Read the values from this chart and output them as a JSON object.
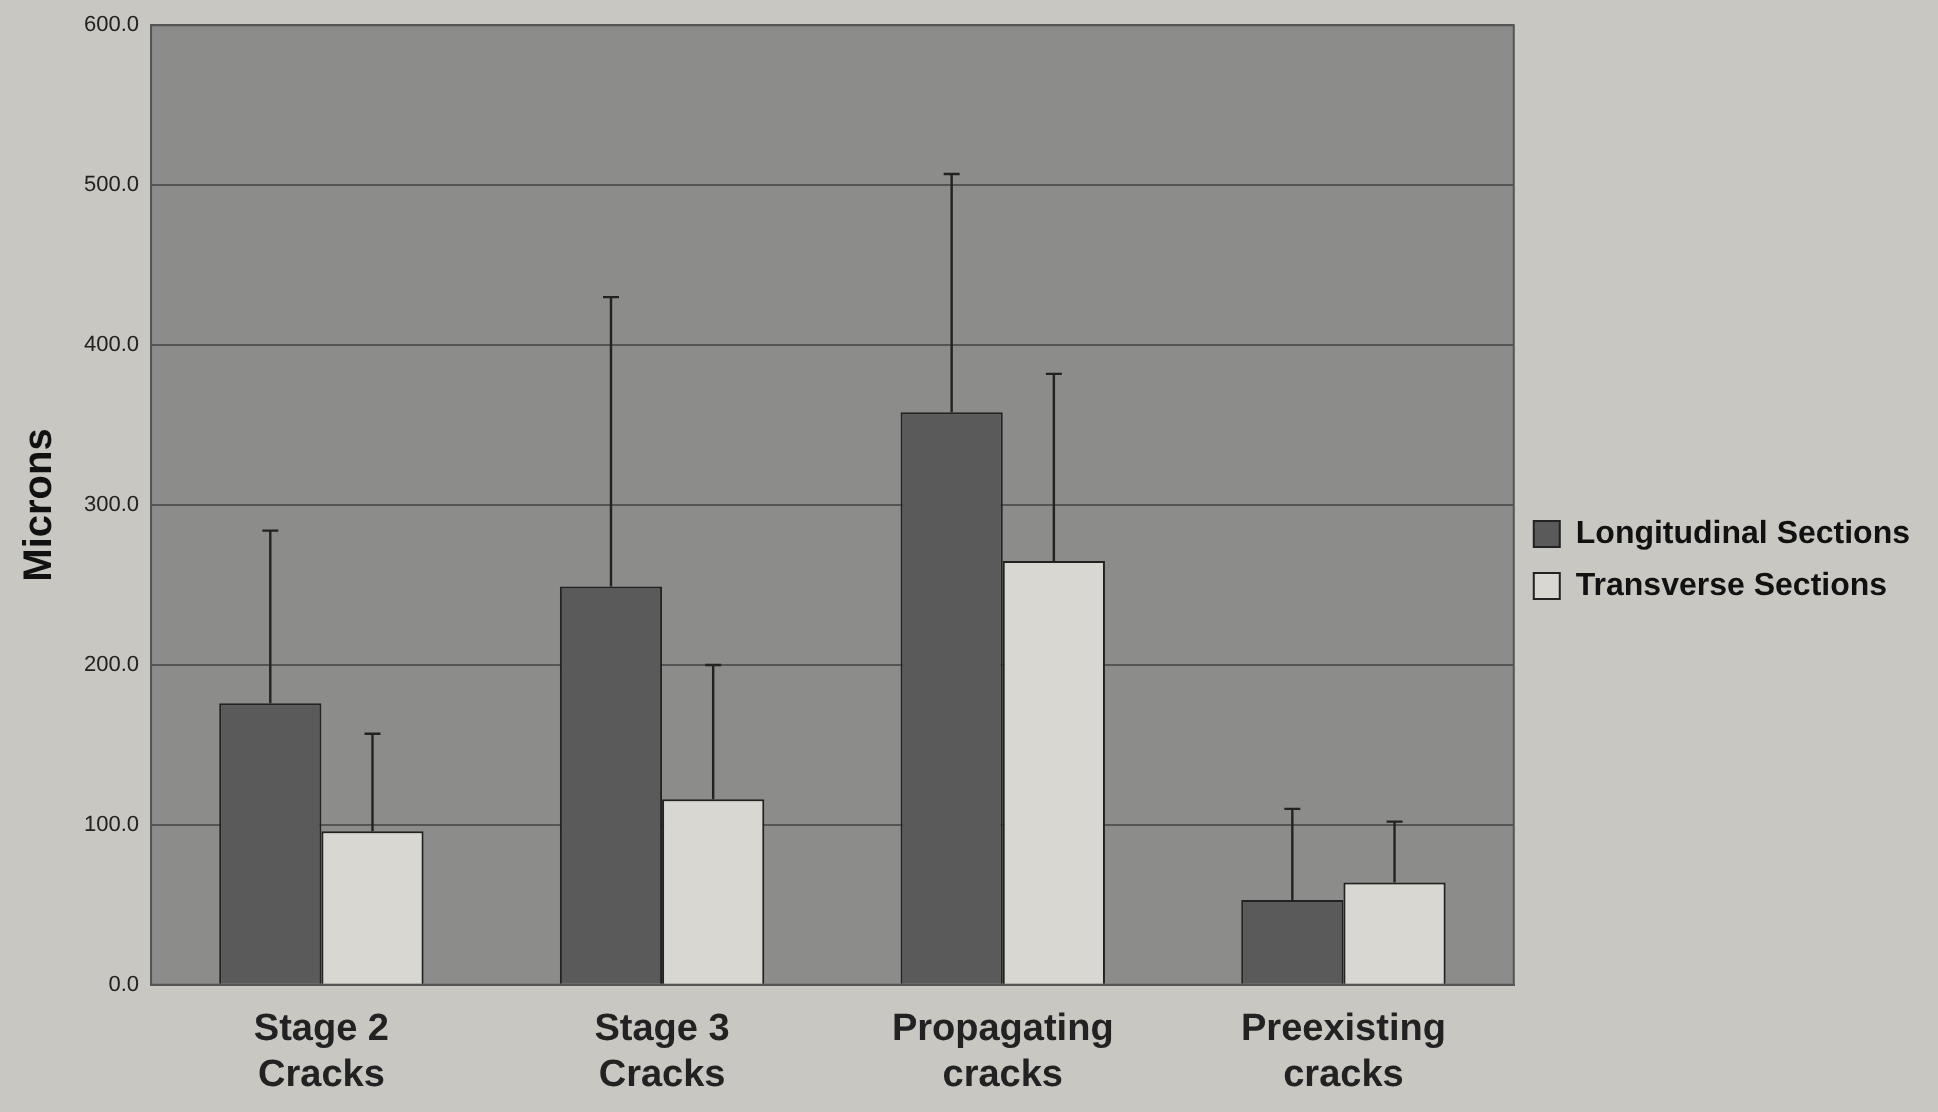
{
  "chart_data": {
    "type": "bar",
    "ylabel": "Microns",
    "categories": [
      "Stage 2\nCracks",
      "Stage 3\nCracks",
      "Propagating\ncracks",
      "Preexisting\ncracks"
    ],
    "series": [
      {
        "name": "Longitudinal Sections",
        "color": "#5a5a5a",
        "values": [
          176,
          249,
          358,
          53
        ],
        "errors": [
          [
            176,
            284
          ],
          [
            249,
            430
          ],
          [
            358,
            507
          ],
          [
            53,
            110
          ]
        ]
      },
      {
        "name": "Transverse Sections",
        "color": "#d9d7d1",
        "values": [
          96,
          116,
          265,
          64
        ],
        "errors": [
          [
            96,
            157
          ],
          [
            116,
            200
          ],
          [
            265,
            382
          ],
          [
            64,
            102
          ]
        ]
      }
    ],
    "ylim": [
      0,
      600
    ],
    "yticks": [
      {
        "value": 0,
        "label": "0.0"
      },
      {
        "value": 100,
        "label": "100.0"
      },
      {
        "value": 200,
        "label": "200.0"
      },
      {
        "value": 300,
        "label": "300.0"
      },
      {
        "value": 400,
        "label": "400.0"
      },
      {
        "value": 500,
        "label": "500.0"
      },
      {
        "value": 600,
        "label": "600.0"
      }
    ],
    "grid": "y",
    "legend": "right"
  }
}
